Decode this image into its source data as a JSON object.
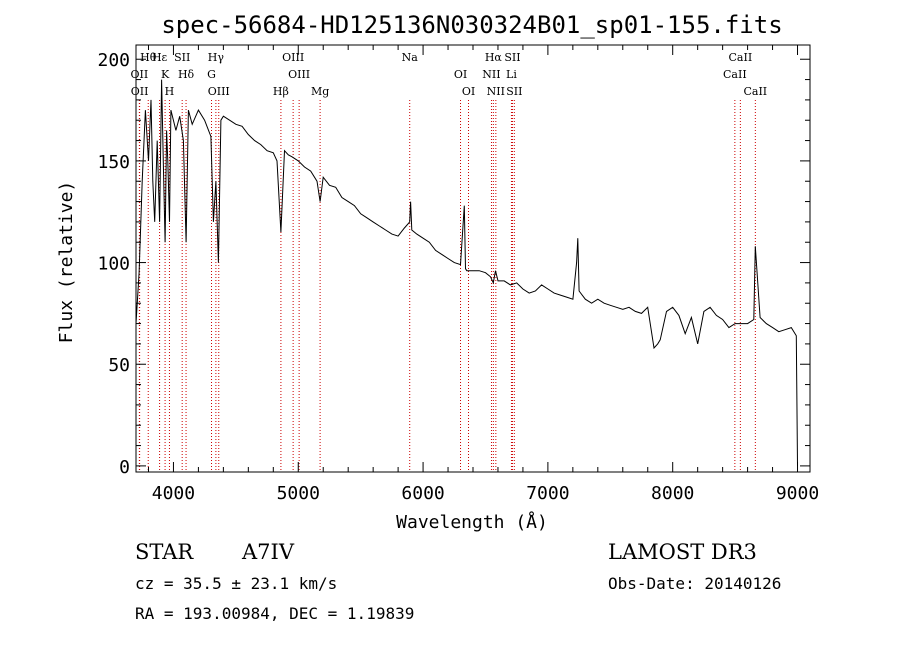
{
  "chart_data": {
    "type": "line",
    "title": "spec-56684-HD125136N030324B01_sp01-155.fits",
    "xlabel": "Wavelength (Å)",
    "ylabel": "Flux (relative)",
    "xlim": [
      3700,
      9100
    ],
    "ylim": [
      -3,
      207
    ],
    "xticks": [
      4000,
      5000,
      6000,
      7000,
      8000,
      9000
    ],
    "yticks": [
      0,
      50,
      100,
      150,
      200
    ],
    "series": [
      {
        "name": "flux",
        "x": [
          3700,
          3725,
          3750,
          3775,
          3800,
          3820,
          3835,
          3850,
          3870,
          3889,
          3905,
          3920,
          3933,
          3945,
          3955,
          3968,
          3980,
          4000,
          4020,
          4050,
          4080,
          4101,
          4120,
          4150,
          4200,
          4250,
          4300,
          4320,
          4340,
          4360,
          4380,
          4400,
          4450,
          4500,
          4550,
          4600,
          4650,
          4700,
          4750,
          4800,
          4830,
          4861,
          4890,
          4920,
          4950,
          5000,
          5050,
          5100,
          5150,
          5175,
          5200,
          5250,
          5300,
          5350,
          5400,
          5450,
          5500,
          5550,
          5600,
          5650,
          5700,
          5750,
          5800,
          5850,
          5893,
          5900,
          5910,
          5950,
          6000,
          6050,
          6100,
          6150,
          6200,
          6250,
          6300,
          6330,
          6340,
          6350,
          6400,
          6450,
          6500,
          6540,
          6563,
          6580,
          6600,
          6650,
          6700,
          6750,
          6800,
          6850,
          6900,
          6950,
          7000,
          7050,
          7100,
          7150,
          7200,
          7230,
          7240,
          7250,
          7300,
          7350,
          7400,
          7450,
          7500,
          7550,
          7600,
          7650,
          7700,
          7750,
          7800,
          7850,
          7880,
          7900,
          7950,
          8000,
          8050,
          8100,
          8150,
          8200,
          8250,
          8300,
          8350,
          8400,
          8450,
          8500,
          8550,
          8600,
          8650,
          8662,
          8700,
          8750,
          8800,
          8850,
          8900,
          8950,
          8990,
          9000
        ],
        "values": [
          70,
          95,
          140,
          175,
          150,
          180,
          140,
          120,
          160,
          120,
          190,
          145,
          110,
          165,
          150,
          120,
          175,
          170,
          165,
          172,
          160,
          110,
          175,
          168,
          175,
          170,
          162,
          120,
          140,
          100,
          170,
          172,
          170,
          168,
          167,
          163,
          160,
          158,
          155,
          154,
          150,
          115,
          155,
          153,
          152,
          150,
          147,
          145,
          140,
          130,
          142,
          138,
          137,
          132,
          130,
          128,
          124,
          122,
          120,
          118,
          116,
          114,
          113,
          117,
          120,
          130,
          116,
          114,
          112,
          110,
          106,
          104,
          102,
          100,
          99,
          128,
          97,
          96,
          96,
          96,
          95,
          93,
          90,
          96,
          91,
          91,
          89,
          90,
          87,
          85,
          86,
          89,
          87,
          85,
          84,
          83,
          82,
          100,
          112,
          86,
          82,
          80,
          82,
          80,
          79,
          78,
          77,
          78,
          76,
          75,
          78,
          58,
          60,
          62,
          76,
          78,
          74,
          65,
          73,
          60,
          76,
          78,
          74,
          72,
          68,
          70,
          70,
          70,
          72,
          108,
          73,
          70,
          68,
          66,
          67,
          68,
          64,
          0
        ]
      }
    ],
    "lines": [
      {
        "label": "Hθ",
        "wl": 3798
      },
      {
        "label": "OII",
        "wl": 3727
      },
      {
        "label": "OII",
        "wl": 3729
      },
      {
        "label": "Hε",
        "wl": 3889
      },
      {
        "label": "K",
        "wl": 3933
      },
      {
        "label": "H",
        "wl": 3968
      },
      {
        "label": "SII",
        "wl": 4070
      },
      {
        "label": "Hδ",
        "wl": 4101
      },
      {
        "label": "OIII",
        "wl": 4363
      },
      {
        "label": "Hγ",
        "wl": 4340
      },
      {
        "label": "G",
        "wl": 4305
      },
      {
        "label": "Hβ",
        "wl": 4861
      },
      {
        "label": "OIII",
        "wl": 4959
      },
      {
        "label": "OIII",
        "wl": 5007
      },
      {
        "label": "Mg",
        "wl": 5175
      },
      {
        "label": "Na",
        "wl": 5893
      },
      {
        "label": "OI",
        "wl": 6300
      },
      {
        "label": "OI",
        "wl": 6364
      },
      {
        "label": "Hα",
        "wl": 6563
      },
      {
        "label": "NII",
        "wl": 6548
      },
      {
        "label": "NII",
        "wl": 6583
      },
      {
        "label": "SII",
        "wl": 6716
      },
      {
        "label": "Li",
        "wl": 6708
      },
      {
        "label": "SII",
        "wl": 6731
      },
      {
        "label": "CaII",
        "wl": 8542
      },
      {
        "label": "CaII",
        "wl": 8498
      },
      {
        "label": "CaII",
        "wl": 8662
      }
    ],
    "grid": false
  },
  "info": {
    "object_class": "STAR",
    "subclass": "A7IV",
    "survey": "LAMOST DR3",
    "cz": "cz = 35.5 ± 23.1 km/s",
    "obs_date": "Obs-Date: 20140126",
    "coords": "RA = 193.00984, DEC =    1.19839"
  },
  "colors": {
    "spectrum": "#000000",
    "line_marker": "#cc0000",
    "axes": "#000000"
  }
}
